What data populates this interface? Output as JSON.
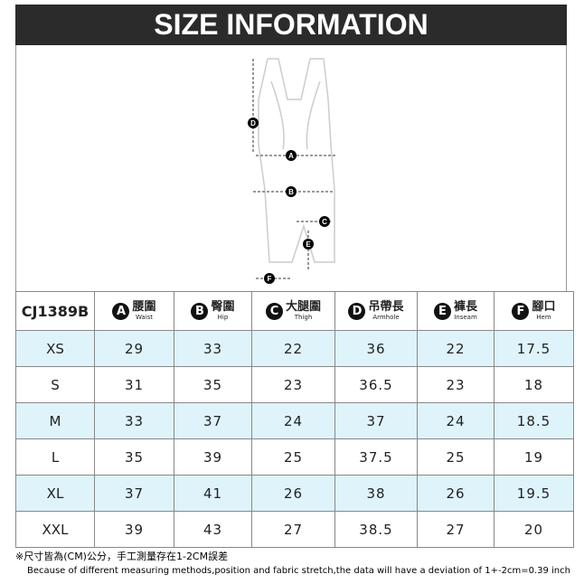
{
  "header": {
    "title": "SIZE INFORMATION"
  },
  "table": {
    "model": "CJ1389B",
    "columns": [
      {
        "letter": "A",
        "zh": "腰圍",
        "en": "Waist"
      },
      {
        "letter": "B",
        "zh": "臀圍",
        "en": "Hip"
      },
      {
        "letter": "C",
        "zh": "大腿圍",
        "en": "Thigh"
      },
      {
        "letter": "D",
        "zh": "吊帶長",
        "en": "Armhole"
      },
      {
        "letter": "E",
        "zh": "褲長",
        "en": "Inseam"
      },
      {
        "letter": "F",
        "zh": "腳口",
        "en": "Hem"
      }
    ],
    "rows": [
      [
        "XS",
        "29",
        "33",
        "22",
        "36",
        "22",
        "17.5"
      ],
      [
        "S",
        "31",
        "35",
        "23",
        "36.5",
        "23",
        "18"
      ],
      [
        "M",
        "33",
        "37",
        "24",
        "37",
        "24",
        "18.5"
      ],
      [
        "L",
        "35",
        "39",
        "25",
        "37.5",
        "25",
        "19"
      ],
      [
        "XL",
        "37",
        "41",
        "26",
        "38",
        "26",
        "19.5"
      ],
      [
        "XXL",
        "39",
        "43",
        "27",
        "38.5",
        "27",
        "20"
      ]
    ]
  },
  "notes": {
    "zh": "※尺寸皆為(CM)公分，手工測量存在1-2CM誤差",
    "en": "Because of different measuring methods,position and fabric stretch,the data will have a deviation of 1+-2cm=0.39 inch"
  }
}
